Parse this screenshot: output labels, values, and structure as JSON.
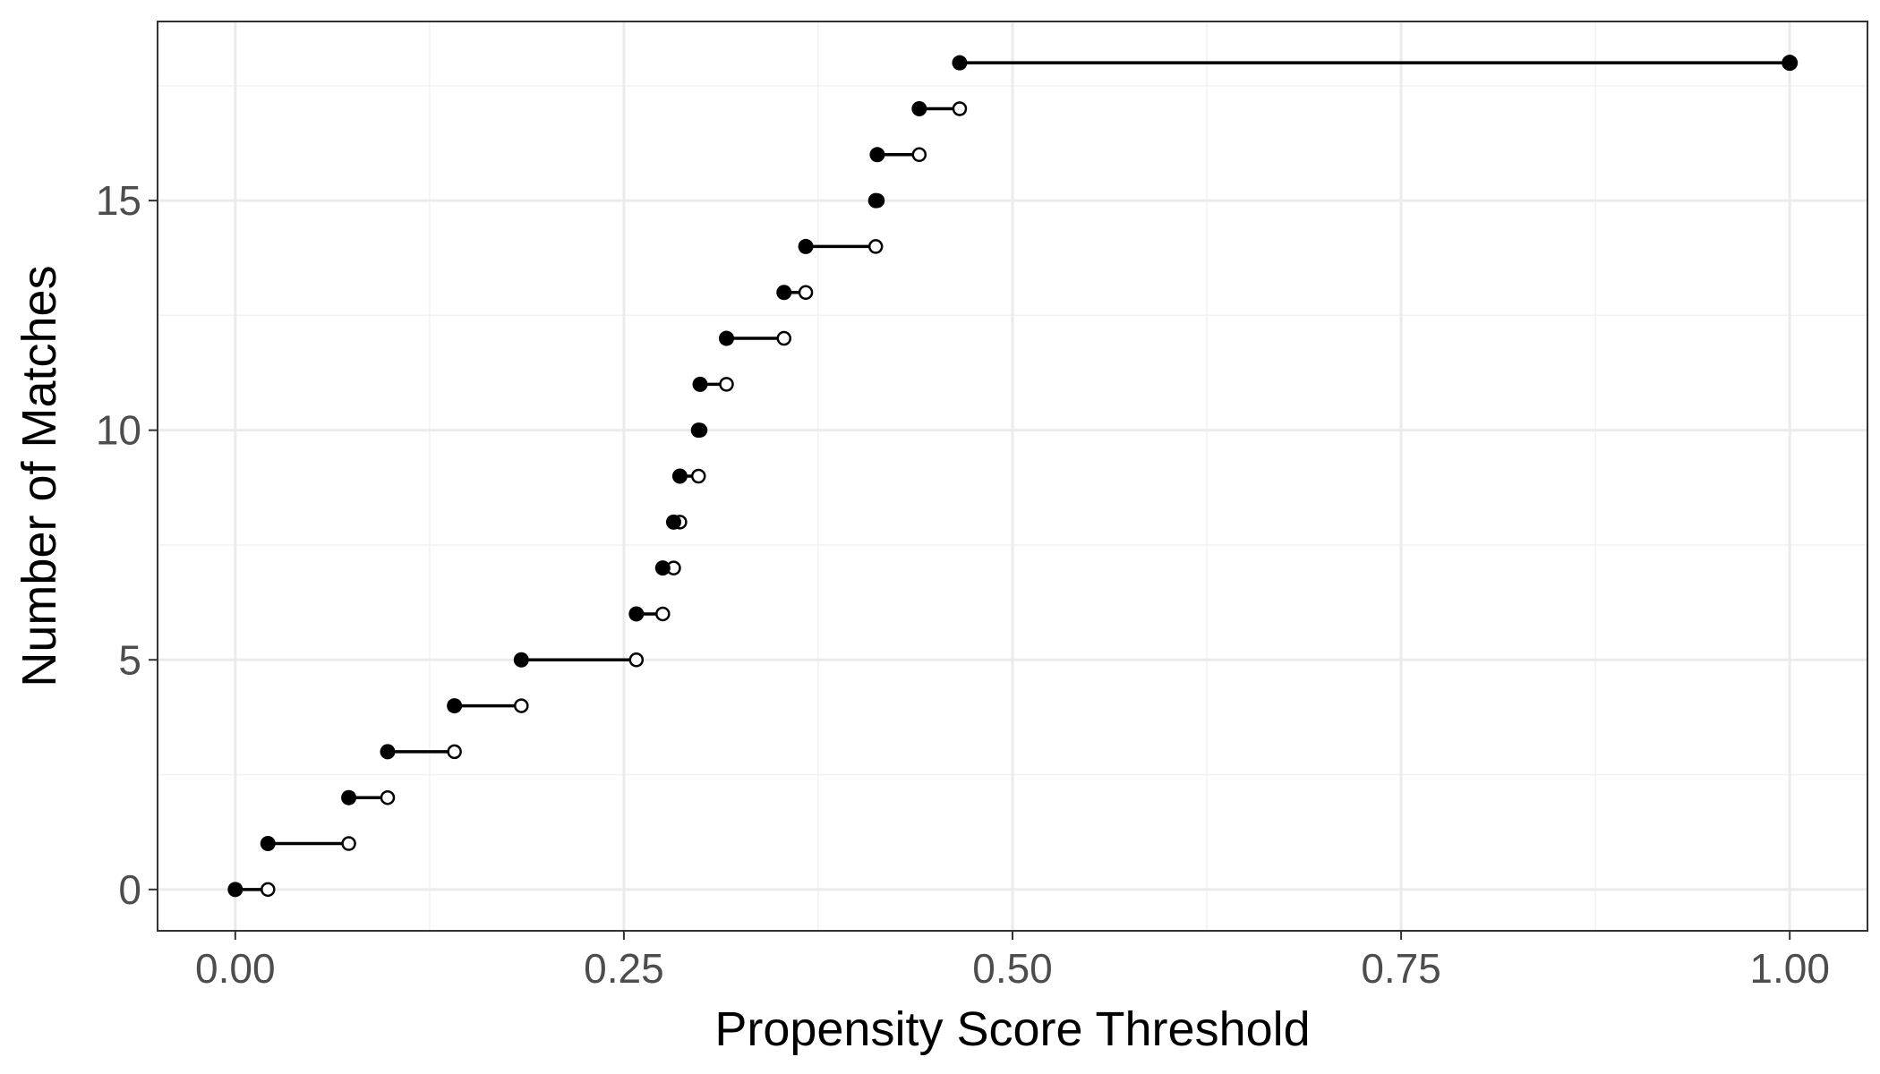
{
  "chart_data": {
    "type": "step",
    "title": "",
    "xlabel": "Propensity Score Threshold",
    "ylabel": "Number of Matches",
    "xlim": [
      -0.05,
      1.05
    ],
    "ylim": [
      -0.9,
      18.9
    ],
    "xticks": [
      0.0,
      0.25,
      0.5,
      0.75,
      1.0
    ],
    "xtick_labels": [
      "0.00",
      "0.25",
      "0.50",
      "0.75",
      "1.00"
    ],
    "yticks": [
      0,
      5,
      10,
      15
    ],
    "ytick_labels": [
      "0",
      "5",
      "10",
      "15"
    ],
    "grid": true,
    "legend": "none",
    "steps": [
      {
        "y": 0,
        "x_start": 0.0,
        "x_end": 0.021
      },
      {
        "y": 1,
        "x_start": 0.021,
        "x_end": 0.073
      },
      {
        "y": 2,
        "x_start": 0.073,
        "x_end": 0.098
      },
      {
        "y": 3,
        "x_start": 0.098,
        "x_end": 0.141
      },
      {
        "y": 4,
        "x_start": 0.141,
        "x_end": 0.184
      },
      {
        "y": 5,
        "x_start": 0.184,
        "x_end": 0.258
      },
      {
        "y": 6,
        "x_start": 0.258,
        "x_end": 0.275
      },
      {
        "y": 7,
        "x_start": 0.275,
        "x_end": 0.282
      },
      {
        "y": 8,
        "x_start": 0.282,
        "x_end": 0.286
      },
      {
        "y": 9,
        "x_start": 0.286,
        "x_end": 0.298
      },
      {
        "y": 10,
        "x_start": 0.298,
        "x_end": 0.299
      },
      {
        "y": 11,
        "x_start": 0.299,
        "x_end": 0.316
      },
      {
        "y": 12,
        "x_start": 0.316,
        "x_end": 0.353
      },
      {
        "y": 13,
        "x_start": 0.353,
        "x_end": 0.367
      },
      {
        "y": 14,
        "x_start": 0.367,
        "x_end": 0.412
      },
      {
        "y": 15,
        "x_start": 0.412,
        "x_end": 0.413
      },
      {
        "y": 16,
        "x_start": 0.413,
        "x_end": 0.44
      },
      {
        "y": 17,
        "x_start": 0.44,
        "x_end": 0.466
      },
      {
        "y": 18,
        "x_start": 0.466,
        "x_end": 1.0,
        "closed_end": true
      }
    ]
  }
}
